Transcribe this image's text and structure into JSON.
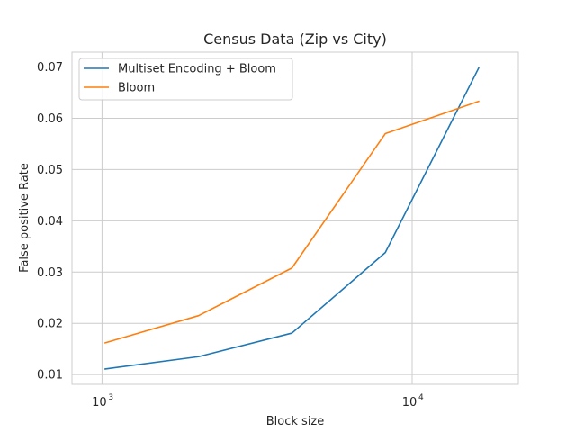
{
  "chart_data": {
    "type": "line",
    "title": "Census Data (Zip vs City)",
    "xlabel": "Block size",
    "ylabel": "False positive Rate",
    "xscale": "log",
    "xlim": [
      800,
      22000
    ],
    "ylim": [
      0.0081,
      0.0729
    ],
    "x_ticks": [
      {
        "value": 1000,
        "base": "10",
        "exp": "3"
      },
      {
        "value": 10000,
        "base": "10",
        "exp": "4"
      }
    ],
    "y_ticks": [
      0.01,
      0.02,
      0.03,
      0.04,
      0.05,
      0.06,
      0.07
    ],
    "y_tick_labels": [
      "0.01",
      "0.02",
      "0.03",
      "0.04",
      "0.05",
      "0.06",
      "0.07"
    ],
    "grid": true,
    "legend_position": "top-left",
    "x": [
      1024,
      2048,
      4096,
      8192,
      16384
    ],
    "series": [
      {
        "name": "Multiset Encoding + Bloom",
        "color": "#1f77b4",
        "values": [
          0.0111,
          0.0135,
          0.0181,
          0.0338,
          0.0698
        ]
      },
      {
        "name": "Bloom",
        "color": "#ff7f0e",
        "values": [
          0.0162,
          0.0215,
          0.0308,
          0.057,
          0.0633
        ]
      }
    ]
  }
}
